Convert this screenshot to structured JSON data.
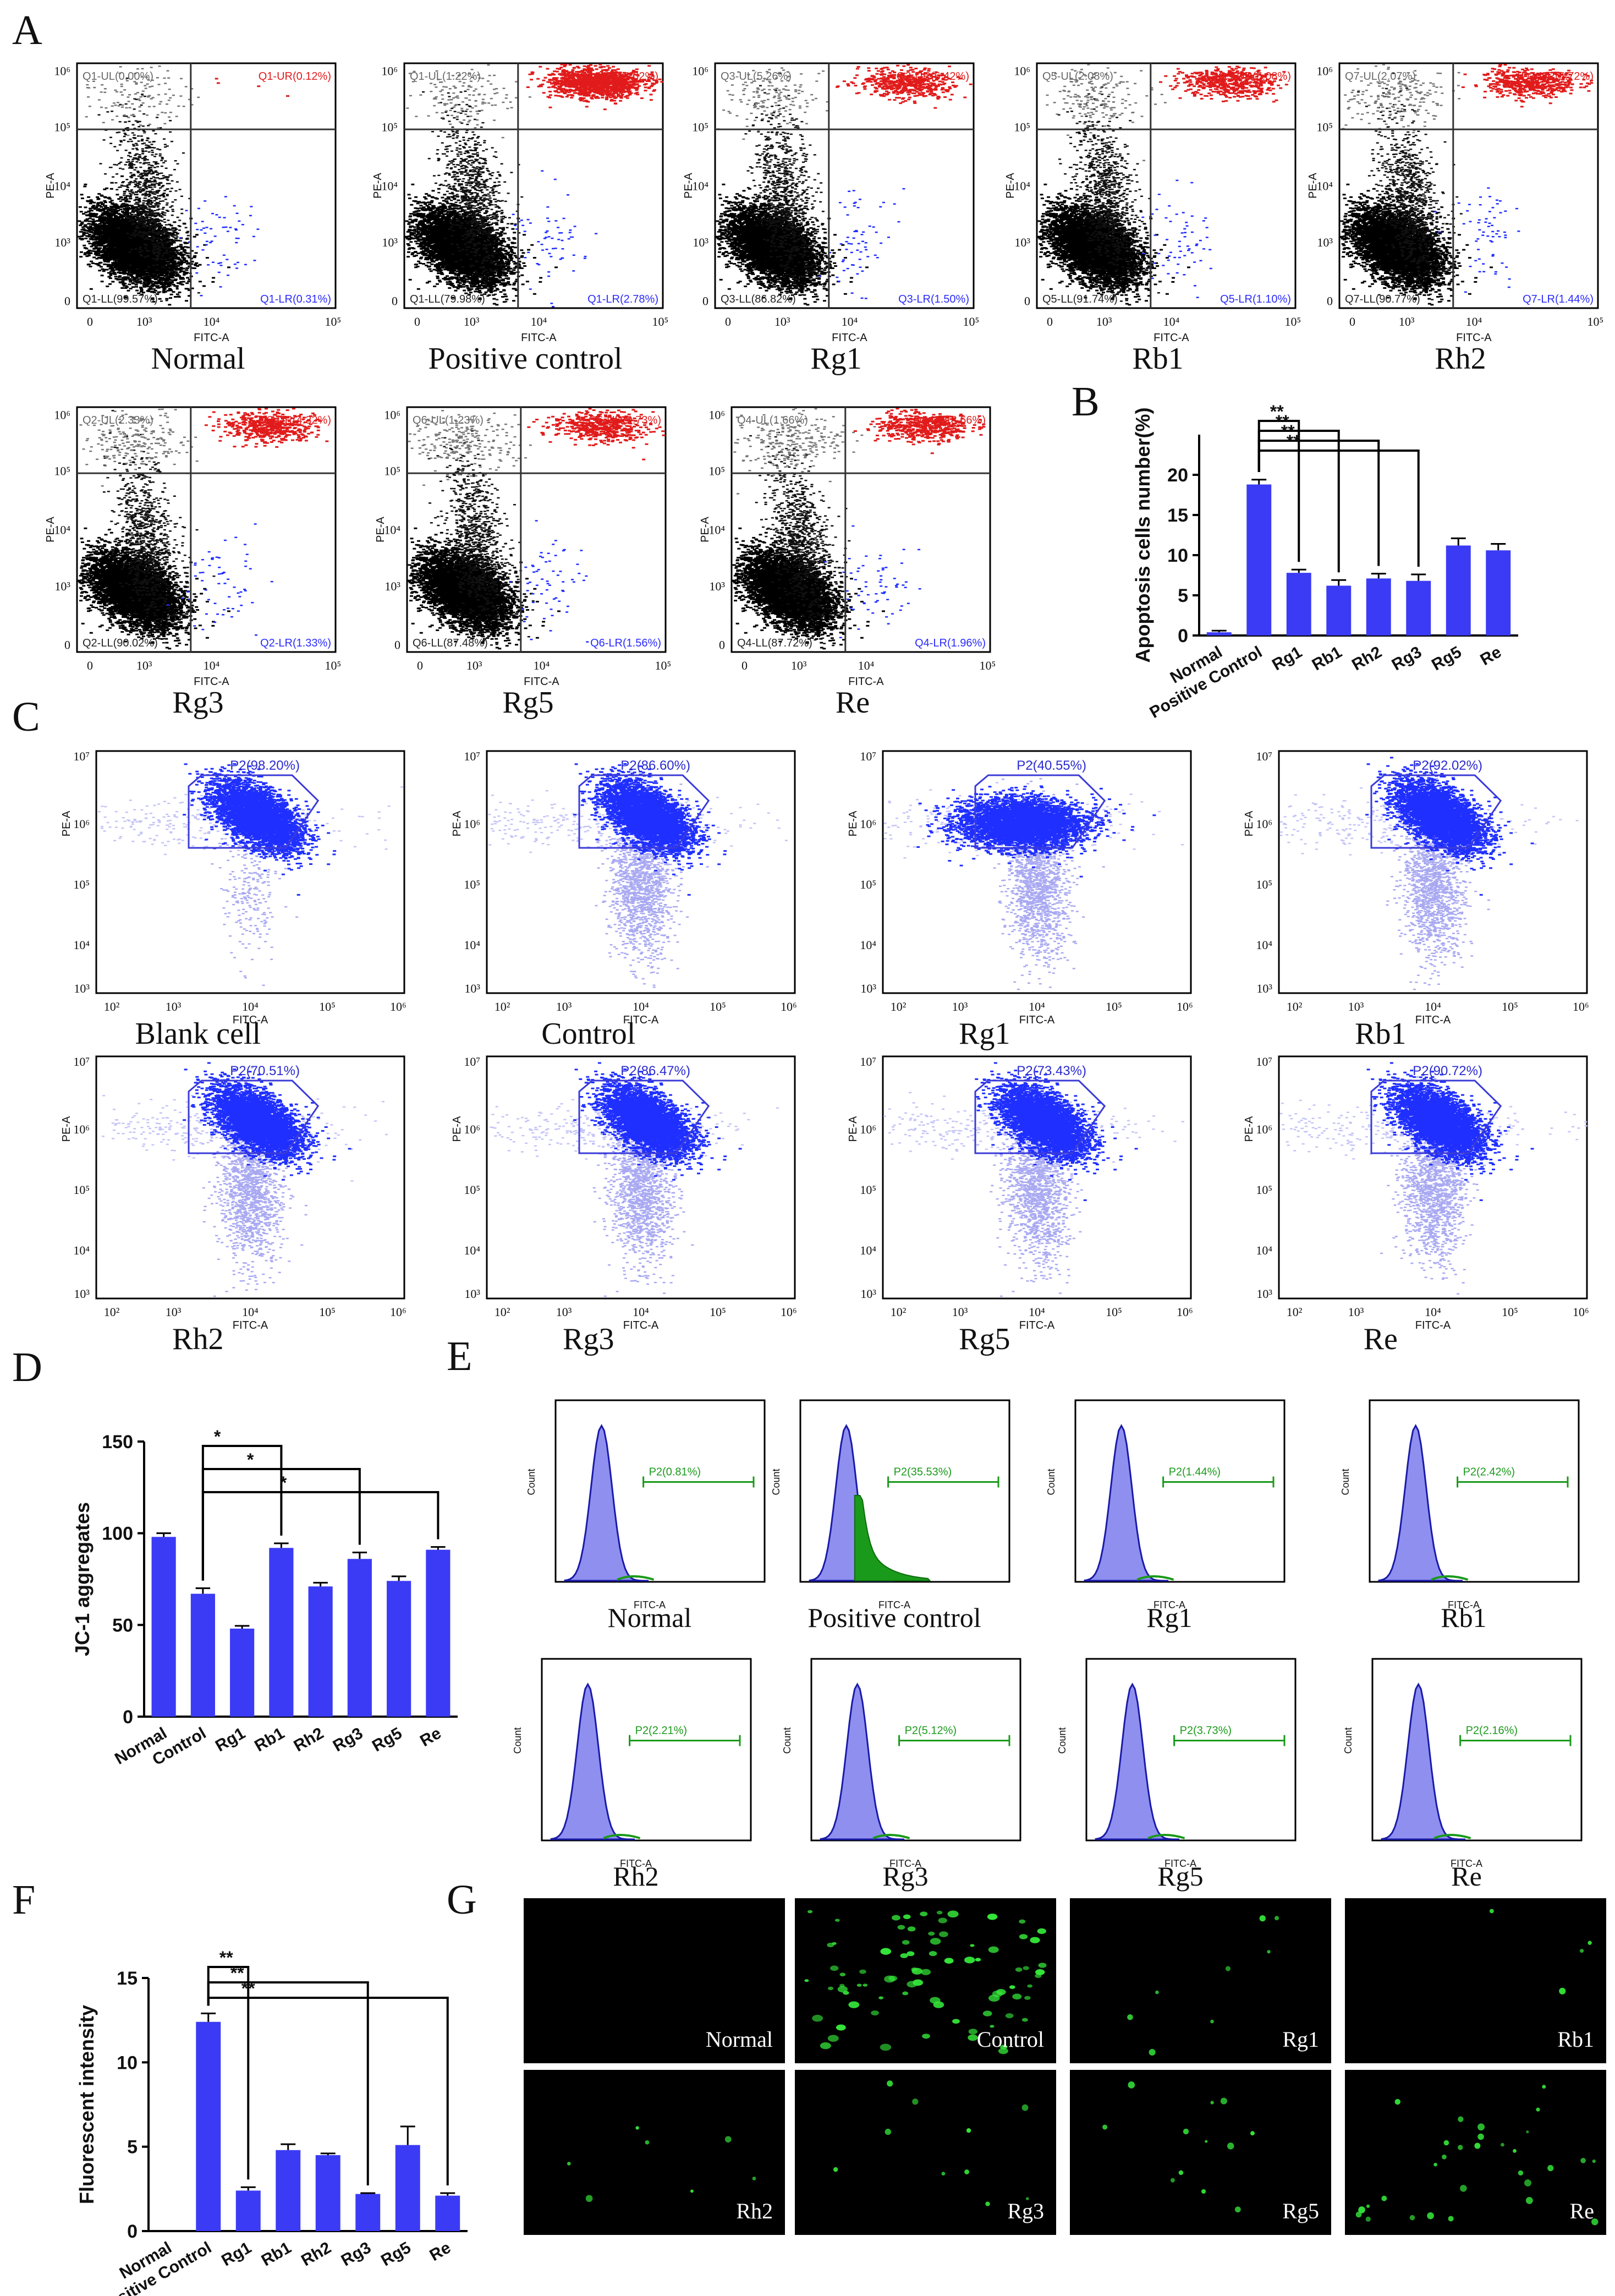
{
  "panel_letters": {
    "A": "A",
    "B": "B",
    "C": "C",
    "D": "D",
    "E": "E",
    "F": "F",
    "G": "G"
  },
  "colors": {
    "bar": "#3b3bf5",
    "red_dots": "#e11b1b",
    "blue_dots": "#1f2fff",
    "histogram_fill": "#8f8ff0",
    "histogram_green": "#1a9a1a",
    "quadrant_ul": "#666666",
    "quadrant_ur": "#e11b1b",
    "quadrant_lr": "#2a2aff",
    "gate": "#3b3bd8"
  },
  "panel_a": {
    "x_axis_label": "FITC-A",
    "plots": [
      {
        "name": "Normal",
        "ul": "Q1-UL(0.00%)",
        "ur": "Q1-UR(0.12%)",
        "ll": "Q1-LL(99.57%)",
        "lr": "Q1-LR(0.31%)",
        "y_label": "PE-A"
      },
      {
        "name": "Positive control",
        "ul": "Q1-UL(1.22%)",
        "ur": "Q1-UR(18.02%)",
        "ll": "Q1-LL(79.98%)",
        "lr": "Q1-LR(2.78%)",
        "y_label": "PE-A"
      },
      {
        "name": "Rg1",
        "ul": "Q3-UL(5.26%)",
        "ur": "Q3-UR(6.42%)",
        "ll": "Q3-LL(86.82%)",
        "lr": "Q3-LR(1.50%)",
        "y_label": "PE-A"
      },
      {
        "name": "Rb1",
        "ul": "Q5-UL(2.08%)",
        "ur": "Q5-UR(5.08%)",
        "ll": "Q5-LL(91.74%)",
        "lr": "Q5-LR(1.10%)",
        "y_label": "PE-A"
      },
      {
        "name": "Rh2",
        "ul": "Q7-UL(2.07%)",
        "ur": "Q7-UR(5.72%)",
        "ll": "Q7-LL(90.77%)",
        "lr": "Q7-LR(1.44%)",
        "y_label": "PE-A"
      },
      {
        "name": "Rg3",
        "ul": "Q2-UL(2.33%)",
        "ur": "Q2-UR(4.32%)",
        "ll": "Q2-LL(90.02%)",
        "lr": "Q2-LR(1.33%)",
        "y_label": "PE-A"
      },
      {
        "name": "Rg5",
        "ul": "Q6-UL(1.23%)",
        "ur": "Q6-UR(9.73%)",
        "ll": "Q6-LL(87.48%)",
        "lr": "Q6-LR(1.56%)",
        "y_label": "PE-A"
      },
      {
        "name": "Re",
        "ul": "Q4-UL(1.66%)",
        "ur": "Q4-UR(8.66%)",
        "ll": "Q4-LL(87.72%)",
        "lr": "Q4-LR(1.96%)",
        "y_label": "PE-A"
      }
    ]
  },
  "panel_c": {
    "x_axis_label": "FITC-A",
    "y_axis_label": "PE-A",
    "plots": [
      {
        "name": "Blank cell",
        "gate": "P2(98.20%)"
      },
      {
        "name": "Control",
        "gate": "P2(86.60%)"
      },
      {
        "name": "Rg1",
        "gate": "P2(40.55%)"
      },
      {
        "name": "Rb1",
        "gate": "P2(92.02%)"
      },
      {
        "name": "Rh2",
        "gate": "P2(70.51%)"
      },
      {
        "name": "Rg3",
        "gate": "P2(86.47%)"
      },
      {
        "name": "Rg5",
        "gate": "P2(73.43%)"
      },
      {
        "name": "Re",
        "gate": "P2(90.72%)"
      }
    ]
  },
  "panel_e": {
    "x_axis_label": "FITC-A",
    "y_axis_label": "Count",
    "plots": [
      {
        "name": "Normal",
        "gate": "P2(0.81%)"
      },
      {
        "name": "Positive control",
        "gate": "P2(35.53%)"
      },
      {
        "name": "Rg1",
        "gate": "P2(1.44%)"
      },
      {
        "name": "Rb1",
        "gate": "P2(2.42%)"
      },
      {
        "name": "Rh2",
        "gate": "P2(2.21%)"
      },
      {
        "name": "Rg3",
        "gate": "P2(5.12%)"
      },
      {
        "name": "Rg5",
        "gate": "P2(3.73%)"
      },
      {
        "name": "Re",
        "gate": "P2(2.16%)"
      }
    ]
  },
  "panel_g": {
    "labels": [
      "Normal",
      "Control",
      "Rg1",
      "Rb1",
      "Rh2",
      "Rg3",
      "Rg5",
      "Re"
    ]
  },
  "chart_data": [
    {
      "panel": "B",
      "type": "bar",
      "ylabel": "Apoptosis cells number(%)",
      "categories": [
        "Normal",
        "Positive Control",
        "Rg1",
        "Rb1",
        "Rh2",
        "Rg3",
        "Rg5",
        "Re"
      ],
      "values": [
        0.4,
        18.8,
        7.8,
        6.2,
        7.1,
        6.8,
        11.2,
        10.6
      ],
      "errors": [
        0.2,
        0.6,
        0.4,
        0.7,
        0.6,
        0.8,
        0.9,
        0.8
      ],
      "ylim": [
        0,
        25
      ],
      "yticks": [
        0,
        5,
        10,
        15,
        20
      ],
      "significance": [
        {
          "from": "Positive Control",
          "to": "Rg1",
          "label": "**"
        },
        {
          "from": "Positive Control",
          "to": "Rb1",
          "label": "**"
        },
        {
          "from": "Positive Control",
          "to": "Rh2",
          "label": "**"
        },
        {
          "from": "Positive Control",
          "to": "Rg3",
          "label": "**"
        }
      ]
    },
    {
      "panel": "D",
      "type": "bar",
      "ylabel": "JC-1 aggregates",
      "categories": [
        "Normal",
        "Control",
        "Rg1",
        "Rb1",
        "Rh2",
        "Rg3",
        "Rg5",
        "Re"
      ],
      "values": [
        98,
        67,
        48,
        92,
        71,
        86,
        74,
        91
      ],
      "errors": [
        2,
        3,
        1.5,
        2.5,
        2,
        3.5,
        2.5,
        1.5
      ],
      "ylim": [
        0,
        150
      ],
      "yticks": [
        0,
        50,
        100,
        150
      ],
      "significance": [
        {
          "from": "Control",
          "to": "Rb1",
          "label": "*"
        },
        {
          "from": "Control",
          "to": "Rg3",
          "label": "*"
        },
        {
          "from": "Control",
          "to": "Re",
          "label": "*"
        }
      ]
    },
    {
      "panel": "F",
      "type": "bar",
      "ylabel": "Fluorescent intensity",
      "categories": [
        "Normal",
        "Positive Control",
        "Rg1",
        "Rb1",
        "Rh2",
        "Rg3",
        "Rg5",
        "Re"
      ],
      "values": [
        0,
        12.4,
        2.4,
        4.8,
        4.5,
        2.2,
        5.1,
        2.1
      ],
      "errors": [
        0,
        0.5,
        0.2,
        0.35,
        0.1,
        0.05,
        1.1,
        0.15
      ],
      "ylim": [
        0,
        15
      ],
      "yticks": [
        0,
        5,
        10,
        15
      ],
      "significance": [
        {
          "from": "Positive Control",
          "to": "Rg1",
          "label": "**"
        },
        {
          "from": "Positive Control",
          "to": "Rg3",
          "label": "**"
        },
        {
          "from": "Positive Control",
          "to": "Re",
          "label": "**"
        }
      ]
    }
  ]
}
